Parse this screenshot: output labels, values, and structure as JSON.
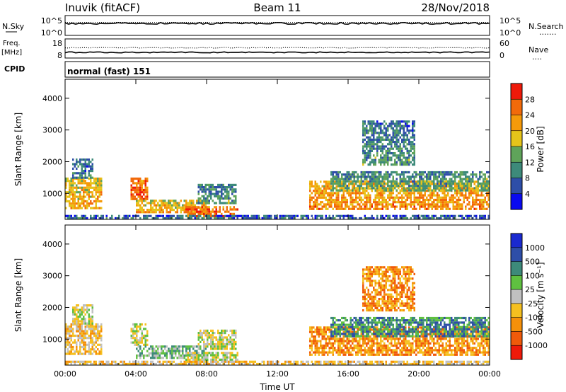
{
  "header": {
    "station": "Inuvik (fitACF)",
    "beam": "Beam 11",
    "date": "28/Nov/2018"
  },
  "top_panels": {
    "nsky": {
      "label": "N.Sky",
      "ticks_left": [
        "10^5",
        "10^0"
      ],
      "ticks_right": [
        "10^5",
        "10^0"
      ],
      "right_label": "N.Search",
      "right_legend": "......."
    },
    "freq": {
      "label_top": "Freq.",
      "label_bottom": "[MHz]",
      "ticks_left": [
        "18",
        "8"
      ],
      "ticks_right": [
        "60",
        "0"
      ],
      "right_label": "Nave",
      "right_legend": "...."
    },
    "cpid": {
      "label": "CPID",
      "value": "normal (fast) 151"
    }
  },
  "chart_data": [
    {
      "type": "heatmap",
      "name": "power",
      "ylabel": "Slant Range [km]",
      "xlabel": "",
      "xlim": [
        "00:00",
        "24:00"
      ],
      "ylim": [
        180,
        4600
      ],
      "y_ticks": [
        1000,
        2000,
        3000,
        4000
      ],
      "x_ticks": [
        "00:00",
        "04:00",
        "08:00",
        "12:00",
        "16:00",
        "20:00",
        "00:00"
      ],
      "colorbar": {
        "label": "Power [dB]",
        "range": [
          0,
          32
        ],
        "ticks": [
          "4",
          "8",
          "12",
          "16",
          "20",
          "24",
          "28"
        ],
        "colors": [
          "#0a0af0",
          "#2e4ea8",
          "#3d8a7a",
          "#5fa35a",
          "#e6c41a",
          "#f59a0a",
          "#f26a0a",
          "#ee1a0a"
        ]
      },
      "regions": [
        {
          "t0": 0.0,
          "t1": 2.1,
          "r0": 500,
          "r1": 1500,
          "level": 20
        },
        {
          "t0": 0.4,
          "t1": 1.6,
          "r0": 1500,
          "r1": 2100,
          "level": 8
        },
        {
          "t0": 3.7,
          "t1": 4.7,
          "r0": 800,
          "r1": 1500,
          "level": 26
        },
        {
          "t0": 4.0,
          "t1": 8.0,
          "r0": 380,
          "r1": 800,
          "level": 20
        },
        {
          "t0": 6.8,
          "t1": 9.8,
          "r0": 250,
          "r1": 600,
          "level": 26
        },
        {
          "t0": 7.5,
          "t1": 9.7,
          "r0": 700,
          "r1": 1300,
          "level": 10
        },
        {
          "t0": 13.8,
          "t1": 24.0,
          "r0": 500,
          "r1": 1400,
          "level": 22
        },
        {
          "t0": 15.0,
          "t1": 24.0,
          "r0": 1100,
          "r1": 1700,
          "level": 12
        },
        {
          "t0": 16.8,
          "t1": 19.8,
          "r0": 1900,
          "r1": 3300,
          "level": 10
        },
        {
          "t0": 0.0,
          "t1": 24.0,
          "r0": 180,
          "r1": 320,
          "level": 8
        }
      ]
    },
    {
      "type": "heatmap",
      "name": "velocity",
      "ylabel": "Slant Range [km]",
      "xlabel": "Time UT",
      "xlim": [
        "00:00",
        "24:00"
      ],
      "ylim": [
        180,
        4600
      ],
      "y_ticks": [
        1000,
        2000,
        3000,
        4000
      ],
      "x_ticks": [
        "00:00",
        "04:00",
        "08:00",
        "12:00",
        "16:00",
        "20:00",
        "00:00"
      ],
      "colorbar": {
        "label": "Velocity [m s⁻¹]",
        "ticks": [
          "1000",
          "500",
          "100",
          "25",
          "-25",
          "-100",
          "-500",
          "-1000"
        ],
        "colors": [
          "#1a2ad0",
          "#2e4ea8",
          "#3d8a7a",
          "#5fc040",
          "#c0c0c0",
          "#f5c020",
          "#f5900a",
          "#f05a0a",
          "#ee1a0a"
        ]
      },
      "regions": [
        {
          "t0": 0.0,
          "t1": 2.1,
          "r0": 500,
          "r1": 1500,
          "level": 5
        },
        {
          "t0": 0.4,
          "t1": 1.6,
          "r0": 1500,
          "r1": 2100,
          "level": 4
        },
        {
          "t0": 3.7,
          "t1": 4.7,
          "r0": 800,
          "r1": 1500,
          "level": 4
        },
        {
          "t0": 4.0,
          "t1": 8.0,
          "r0": 380,
          "r1": 800,
          "level": 3
        },
        {
          "t0": 6.8,
          "t1": 9.8,
          "r0": 250,
          "r1": 600,
          "level": 4
        },
        {
          "t0": 7.5,
          "t1": 9.7,
          "r0": 700,
          "r1": 1300,
          "level": 4
        },
        {
          "t0": 13.8,
          "t1": 24.0,
          "r0": 500,
          "r1": 1400,
          "level": 6
        },
        {
          "t0": 15.0,
          "t1": 24.0,
          "r0": 1100,
          "r1": 1700,
          "level": 2
        },
        {
          "t0": 16.8,
          "t1": 19.8,
          "r0": 1900,
          "r1": 3300,
          "level": 6
        },
        {
          "t0": 0.0,
          "t1": 24.0,
          "r0": 180,
          "r1": 320,
          "level": 5
        }
      ]
    }
  ]
}
